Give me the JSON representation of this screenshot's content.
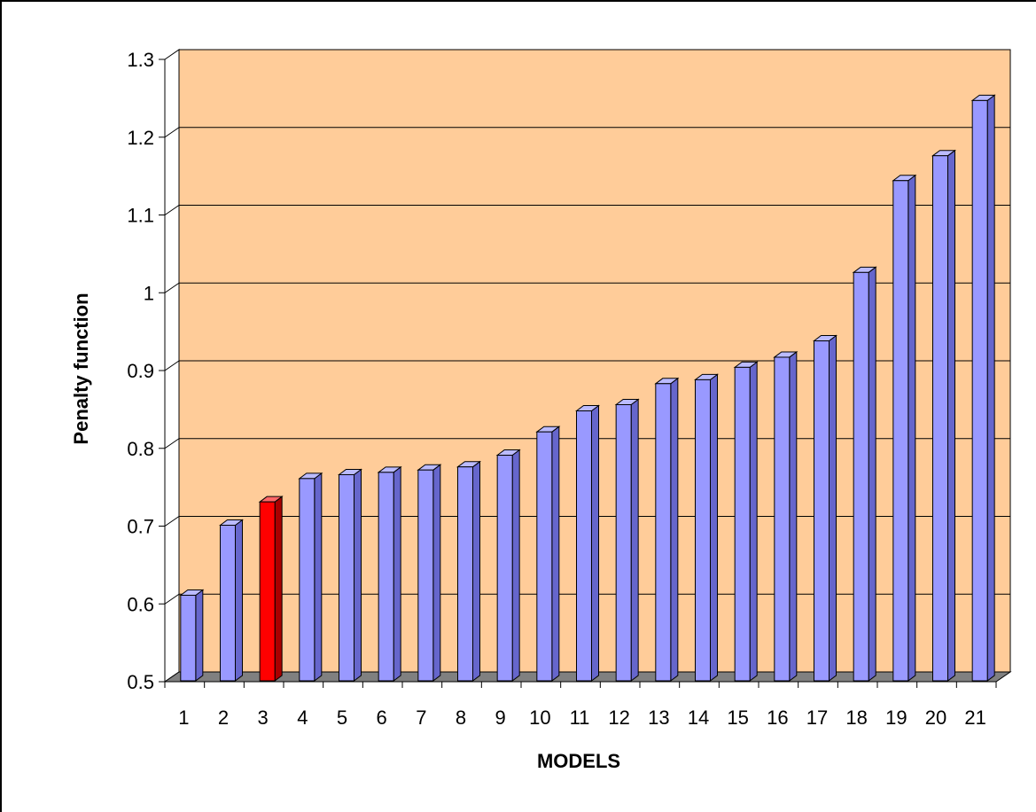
{
  "chart_data": {
    "type": "bar",
    "title": "",
    "xlabel": "MODELS",
    "ylabel": "Penalty function",
    "ylim": [
      0.5,
      1.3
    ],
    "yticks": [
      "0.5",
      "0.6",
      "0.7",
      "0.8",
      "0.9",
      "1",
      "1.1",
      "1.2",
      "1.3"
    ],
    "grid": true,
    "categories": [
      "1",
      "2",
      "3",
      "4",
      "5",
      "6",
      "7",
      "8",
      "9",
      "10",
      "11",
      "12",
      "13",
      "14",
      "15",
      "16",
      "17",
      "18",
      "19",
      "20",
      "21"
    ],
    "values": [
      0.61,
      0.7,
      0.73,
      0.76,
      0.765,
      0.768,
      0.771,
      0.775,
      0.79,
      0.82,
      0.847,
      0.855,
      0.882,
      0.887,
      0.903,
      0.916,
      0.937,
      1.025,
      1.143,
      1.175,
      1.246
    ],
    "highlight_index": 2,
    "colors": {
      "bar": "#9999ff",
      "bar_side": "#6666cc",
      "bar_top": "#bbbbff",
      "highlight": "#ff0000",
      "highlight_side": "#aa0000",
      "highlight_top": "#ff6666",
      "plot_background": "#ffcc99",
      "floor": "#808080",
      "gridline": "#000000"
    }
  }
}
